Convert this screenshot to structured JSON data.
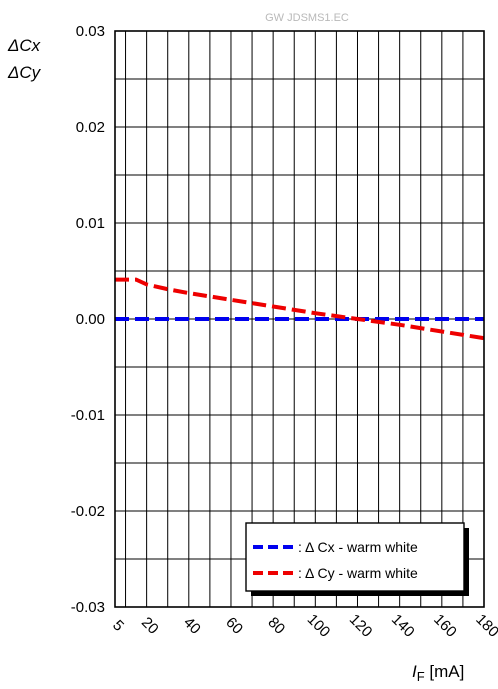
{
  "watermark": "GW JDSMS1.EC",
  "chart_data": {
    "type": "line",
    "ylabel_lines": [
      "ΔCx",
      "ΔCy"
    ],
    "xlabel_symbol": "I",
    "xlabel_subscript": "F",
    "xlabel_unit": " [mA]",
    "x_ticks": [
      5,
      20,
      40,
      60,
      80,
      100,
      120,
      140,
      160,
      180
    ],
    "x_tick_labels": [
      "5",
      "20",
      "40",
      "60",
      "80",
      "100",
      "120",
      "140",
      "160",
      "180"
    ],
    "y_ticks": [
      -0.03,
      -0.02,
      -0.01,
      0.0,
      0.01,
      0.02,
      0.03
    ],
    "y_tick_labels": [
      "-0.03",
      "-0.02",
      "-0.01",
      "0.00",
      "0.01",
      "0.02",
      "0.03"
    ],
    "xlim": [
      5,
      180
    ],
    "ylim": [
      -0.03,
      0.03
    ],
    "x_minor_step": 10,
    "y_minor_step": 0.005,
    "grid": true,
    "legend_position": "bottom-right",
    "series": [
      {
        "name": "Δ Cx - warm white",
        "legend_prefix": ": ",
        "color": "#0000ee",
        "dash": "dashed",
        "x": [
          5,
          20,
          40,
          60,
          80,
          100,
          120,
          140,
          160,
          180
        ],
        "y": [
          0.0,
          0.0,
          0.0,
          0.0,
          0.0,
          0.0,
          0.0,
          0.0,
          0.0,
          0.0
        ]
      },
      {
        "name": "Δ Cy - warm white",
        "legend_prefix": ": ",
        "color": "#ee0000",
        "dash": "dashed",
        "x": [
          5,
          10,
          15,
          20,
          30,
          40,
          60,
          80,
          100,
          120,
          140,
          160,
          180
        ],
        "y": [
          0.0041,
          0.0041,
          0.0041,
          0.0036,
          0.0031,
          0.0027,
          0.002,
          0.0013,
          0.0006,
          0.0,
          -0.0006,
          -0.0013,
          -0.002
        ]
      }
    ]
  }
}
